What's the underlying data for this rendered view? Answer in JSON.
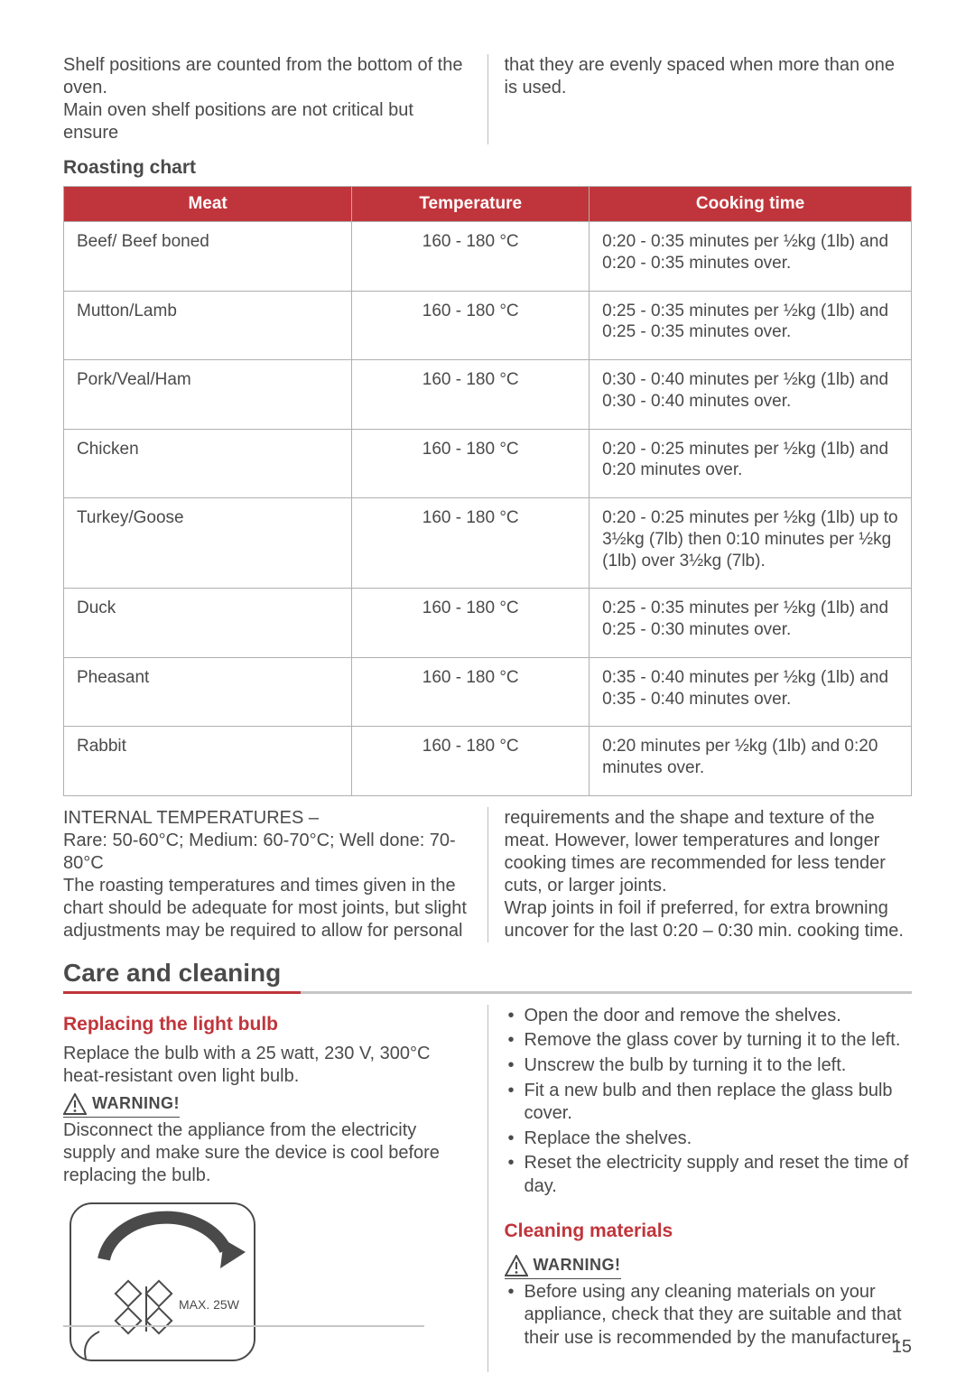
{
  "colors": {
    "accent": "#c0353b",
    "table_header_bg": "#c0353b",
    "accent_grey": "#c6c6c6",
    "text": "#4a4a4a",
    "border": "#b0b0b0"
  },
  "intro": {
    "left": "Shelf positions are counted from the bottom of the oven.\nMain oven shelf positions are not critical but ensure",
    "right": "that they are evenly spaced when more than one is used."
  },
  "roasting": {
    "title": "Roasting chart",
    "columns": [
      "Meat",
      "Temperature",
      "Cooking time"
    ],
    "rows": [
      {
        "meat": "Beef/ Beef boned",
        "temp": "160 - 180 °C",
        "time": "0:20 - 0:35 minutes per ½kg (1lb) and 0:20 - 0:35 minutes over."
      },
      {
        "meat": "Mutton/Lamb",
        "temp": "160 - 180 °C",
        "time": "0:25 - 0:35 minutes per ½kg (1lb) and 0:25 - 0:35 minutes over."
      },
      {
        "meat": "Pork/Veal/Ham",
        "temp": "160 - 180 °C",
        "time": "0:30 - 0:40 minutes per ½kg (1lb) and 0:30 - 0:40 minutes over."
      },
      {
        "meat": "Chicken",
        "temp": "160 - 180 °C",
        "time": "0:20 - 0:25 minutes per ½kg (1lb) and 0:20 minutes over."
      },
      {
        "meat": "Turkey/Goose",
        "temp": "160 - 180 °C",
        "time": "0:20 - 0:25 minutes per ½kg (1lb) up to 3½kg (7lb) then 0:10 minutes per ½kg (1lb) over 3½kg (7lb)."
      },
      {
        "meat": "Duck",
        "temp": "160 - 180 °C",
        "time": "0:25 - 0:35 minutes per ½kg (1lb) and 0:25 - 0:30 minutes over."
      },
      {
        "meat": "Pheasant",
        "temp": "160 - 180 °C",
        "time": "0:35 - 0:40 minutes per ½kg (1lb) and 0:35 - 0:40 minutes over."
      },
      {
        "meat": "Rabbit",
        "temp": "160 - 180 °C",
        "time": "0:20 minutes per ½kg (1lb) and 0:20 minutes over."
      }
    ]
  },
  "notes": {
    "left": "INTERNAL TEMPERATURES –\nRare: 50-60°C; Medium: 60-70°C; Well done: 70-80°C\nThe roasting temperatures and times given in the chart should be adequate for most joints, but slight adjustments may be required to allow for personal",
    "right": "requirements and the shape and  texture of the meat. However, lower temperatures and longer cooking times are recommended for less tender cuts, or larger joints.\nWrap joints in foil if preferred, for extra browning uncover for the last 0:20 – 0:30 min. cooking time."
  },
  "care": {
    "heading": "Care and cleaning",
    "bulb_title": "Replacing the light bulb",
    "bulb_text": "Replace the bulb with a 25 watt, 230 V, 300°C heat-resistant oven light bulb.",
    "warning_label": "WARNING!",
    "bulb_warning_text": "Disconnect the appliance from the electricity supply and make sure the device is cool before replacing the bulb.",
    "bulb_fig_label": "MAX. 25W",
    "steps": [
      "Open the door and remove the shelves.",
      "Remove the glass cover by turning it to the left.",
      "Unscrew the bulb by turning it to the left.",
      "Fit a new bulb and then replace the glass bulb cover.",
      "Replace the shelves.",
      "Reset the electricity supply and reset the time of day."
    ],
    "cleaning_title": "Cleaning materials",
    "cleaning_bullets": [
      "Before using any cleaning materials on your appliance, check that they are suitable and that their use is recommended by the manufacturer."
    ]
  },
  "page_number": "15"
}
